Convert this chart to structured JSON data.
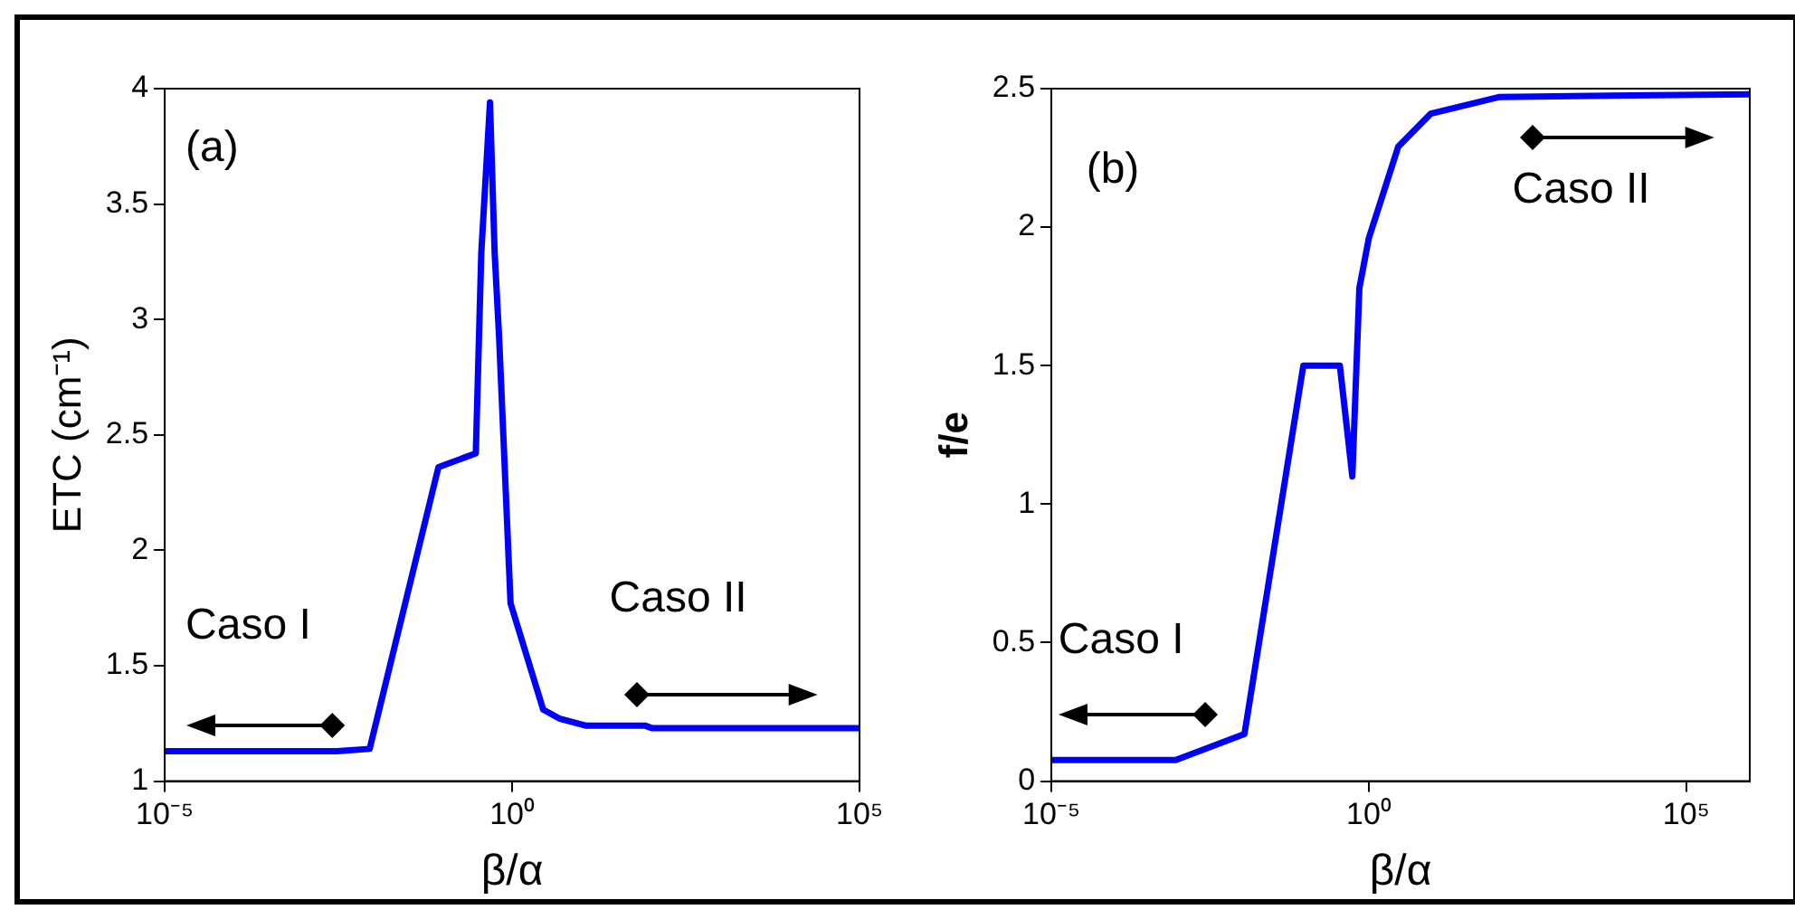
{
  "chart_data": [
    {
      "type": "line",
      "ylabel": "ETC (cm⁻¹)",
      "xlabel": "β/α",
      "log": "x",
      "color": "#0000ff",
      "x": [
        1e-05,
        0.003,
        0.0089,
        0.087,
        0.3,
        0.36,
        0.48,
        0.56,
        0.65,
        0.95,
        2.8,
        4.9,
        11.7,
        83,
        102,
        100000
      ],
      "values": [
        1.13,
        1.13,
        1.14,
        2.36,
        2.42,
        3.29,
        3.94,
        3.29,
        2.92,
        1.77,
        1.31,
        1.27,
        1.24,
        1.24,
        1.23,
        1.23
      ],
      "xlim": [
        1e-05,
        100000
      ],
      "xticks": [
        {
          "value": 1e-05,
          "label": "10⁻⁵"
        },
        {
          "value": 1,
          "label": "10⁰"
        },
        {
          "value": 100000,
          "label": "10⁵"
        }
      ],
      "ylim": [
        1,
        4
      ],
      "yticks": [
        1,
        1.5,
        2,
        2.5,
        3,
        3.5,
        4
      ],
      "grid": false,
      "legend": false,
      "annotations": [
        "(a)",
        "Caso I",
        "Caso II"
      ]
    },
    {
      "type": "line",
      "ylabel": "f/e",
      "xlabel": "β/α",
      "log": "x",
      "color": "#0000ff",
      "x": [
        1e-05,
        0.00091,
        0.011,
        0.093,
        0.35,
        0.55,
        0.71,
        1,
        2.9,
        9.5,
        115,
        1000000
      ],
      "values": [
        0.076,
        0.076,
        0.17,
        1.5,
        1.5,
        1.1,
        1.78,
        1.96,
        2.29,
        2.41,
        2.47,
        2.48
      ],
      "xlim": [
        1e-05,
        1000000
      ],
      "xticks": [
        {
          "value": 1e-05,
          "label": "10⁻⁵"
        },
        {
          "value": 1,
          "label": "10⁰"
        },
        {
          "value": 100000,
          "label": "10⁵"
        }
      ],
      "ylim": [
        0,
        2.5
      ],
      "yticks": [
        0,
        0.5,
        1,
        1.5,
        2,
        2.5
      ],
      "grid": false,
      "legend": false,
      "annotations": [
        "(b)",
        "Caso I",
        "Caso II"
      ]
    }
  ]
}
